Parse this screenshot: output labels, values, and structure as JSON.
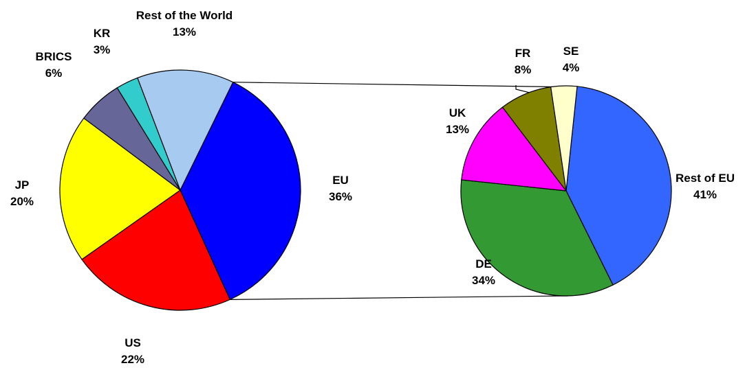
{
  "chart_data": [
    {
      "type": "pie",
      "slices": [
        {
          "label": "EU",
          "pct_text": "36%",
          "value": 36,
          "color": "#0000FF"
        },
        {
          "label": "US",
          "pct_text": "22%",
          "value": 22,
          "color": "#FF0000"
        },
        {
          "label": "JP",
          "pct_text": "20%",
          "value": 20,
          "color": "#FFFF00"
        },
        {
          "label": "BRICS",
          "pct_text": "6%",
          "value": 6,
          "color": "#666699"
        },
        {
          "label": "KR",
          "pct_text": "3%",
          "value": 3,
          "color": "#33CCCC"
        },
        {
          "label": "Rest of the World",
          "pct_text": "13%",
          "value": 13,
          "color": "#A6CAF0"
        }
      ]
    },
    {
      "type": "pie",
      "breakdown_of": "EU",
      "slices": [
        {
          "label": "Rest of EU",
          "pct_text": "41%",
          "value": 41,
          "color": "#3366FF"
        },
        {
          "label": "DE",
          "pct_text": "34%",
          "value": 34,
          "color": "#339933"
        },
        {
          "label": "UK",
          "pct_text": "13%",
          "value": 13,
          "color": "#FF00FF"
        },
        {
          "label": "FR",
          "pct_text": "8%",
          "value": 8,
          "color": "#808000"
        },
        {
          "label": "SE",
          "pct_text": "4%",
          "value": 4,
          "color": "#FFFFCC"
        }
      ]
    }
  ]
}
